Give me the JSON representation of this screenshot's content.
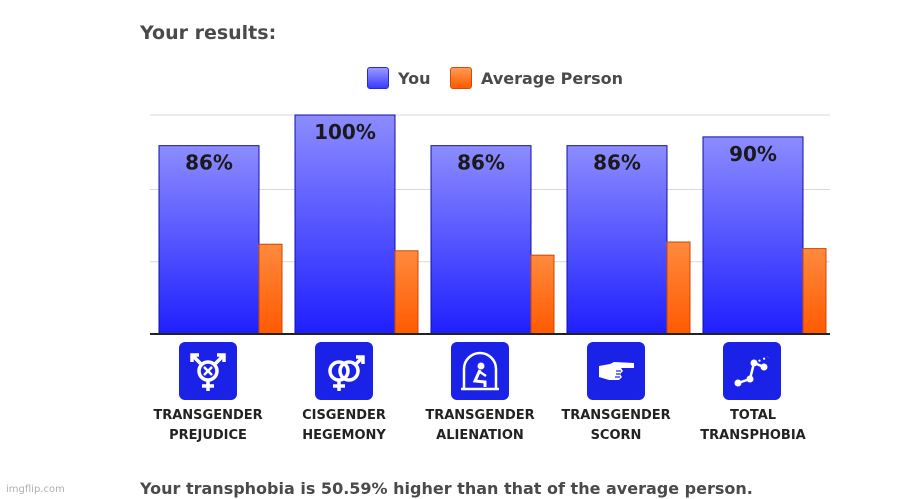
{
  "heading": "Your results:",
  "legend": {
    "you": "You",
    "average": "Average Person"
  },
  "chart_data": {
    "type": "bar",
    "categories": [
      "TRANSGENDER PREJUDICE",
      "CISGENDER HEGEMONY",
      "TRANSGENDER ALIENATION",
      "TRANSGENDER SCORN",
      "TOTAL TRANSPHOBIA"
    ],
    "series": [
      {
        "name": "You",
        "values": [
          86,
          100,
          86,
          86,
          90
        ],
        "labels": [
          "86%",
          "100%",
          "86%",
          "86%",
          "90%"
        ],
        "color": "#3b3bff"
      },
      {
        "name": "Average Person",
        "values": [
          41,
          38,
          36,
          42,
          39
        ],
        "color": "#ff6a10"
      }
    ],
    "ylim": [
      0,
      100
    ],
    "title": "",
    "xlabel": "",
    "ylabel": "",
    "grid": true
  },
  "categories": [
    {
      "line1": "TRANSGENDER",
      "line2": "PREJUDICE",
      "icon": "transgender-symbol-icon"
    },
    {
      "line1": "CISGENDER",
      "line2": "HEGEMONY",
      "icon": "interlocked-gender-icon"
    },
    {
      "line1": "TRANSGENDER",
      "line2": "ALIENATION",
      "icon": "isolated-person-icon"
    },
    {
      "line1": "TRANSGENDER",
      "line2": "SCORN",
      "icon": "pointing-hand-icon"
    },
    {
      "line1": "TOTAL",
      "line2": "TRANSPHOBIA",
      "icon": "line-graph-icon"
    }
  ],
  "summary": "Your transphobia is 50.59% higher than that of the average person.",
  "watermark": "imgflip.com",
  "colors": {
    "you": "#3b3bff",
    "average": "#ff6a10",
    "icon_bg": "#1a22e8"
  }
}
